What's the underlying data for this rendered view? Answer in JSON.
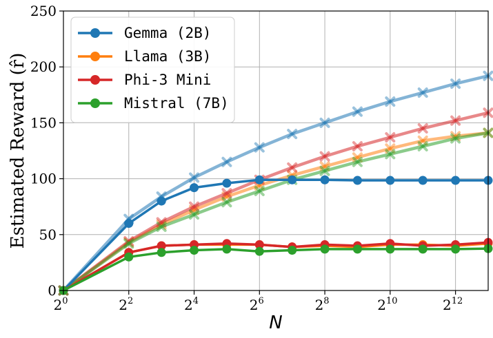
{
  "chart_data": {
    "type": "line",
    "xlabel": "N",
    "ylabel": "Estimated Reward (r̂)",
    "x_scale": "log2",
    "xlim": [
      1,
      8192
    ],
    "ylim": [
      0,
      250
    ],
    "x": [
      1,
      4,
      8,
      16,
      32,
      64,
      128,
      256,
      512,
      1024,
      2048,
      4096,
      8192
    ],
    "x_ticks": [
      {
        "base": "2",
        "exp": "0",
        "value": 1
      },
      {
        "base": "2",
        "exp": "2",
        "value": 4
      },
      {
        "base": "2",
        "exp": "4",
        "value": 16
      },
      {
        "base": "2",
        "exp": "6",
        "value": 64
      },
      {
        "base": "2",
        "exp": "8",
        "value": 256
      },
      {
        "base": "2",
        "exp": "10",
        "value": 1024
      },
      {
        "base": "2",
        "exp": "12",
        "value": 4096
      }
    ],
    "y_ticks": [
      "0",
      "50",
      "100",
      "150",
      "200",
      "250"
    ],
    "grid": true,
    "legend_position": "top-left",
    "series": [
      {
        "name": "Gemma (2B)",
        "color": "#1f77b4",
        "values": [
          0,
          60,
          80,
          92,
          96,
          99,
          99,
          99,
          98.5,
          98.5,
          98.5,
          98.5,
          98.5
        ],
        "estimate": [
          0,
          64,
          84,
          101,
          115,
          128,
          140,
          150,
          160,
          169,
          177,
          185,
          192
        ]
      },
      {
        "name": "Llama (3B)",
        "color": "#ff7f0e",
        "values": [
          0,
          34,
          40,
          41,
          41,
          41,
          39,
          40,
          39,
          41,
          41,
          40,
          42
        ],
        "estimate": [
          0,
          43,
          59,
          72,
          84,
          94,
          103,
          111,
          119,
          127,
          134,
          138,
          141
        ]
      },
      {
        "name": "Phi-3 Mini",
        "color": "#d62728",
        "values": [
          0,
          34,
          40,
          41,
          42,
          41,
          39,
          41,
          40,
          42,
          40,
          41,
          43
        ],
        "estimate": [
          0,
          44,
          61,
          75,
          87,
          99,
          110,
          120,
          129,
          137,
          145,
          152,
          159
        ]
      },
      {
        "name": "Mistral (7B)",
        "color": "#2ca02c",
        "values": [
          0,
          30,
          34,
          36,
          37,
          35,
          36,
          37,
          37,
          37,
          37,
          37,
          37.5
        ],
        "estimate": [
          0,
          42,
          57,
          68,
          79,
          89,
          99,
          107,
          115,
          122,
          129,
          136,
          141
        ]
      }
    ]
  }
}
